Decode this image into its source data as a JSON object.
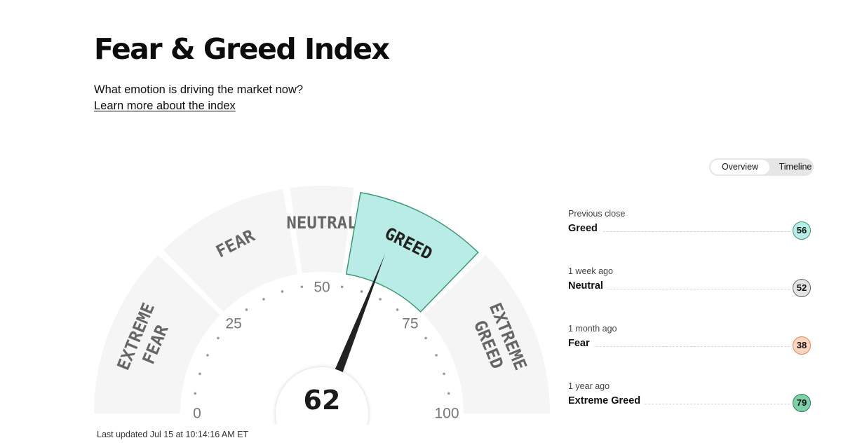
{
  "header": {
    "title": "Fear & Greed Index",
    "subtitle": "What emotion is driving the market now?",
    "learn_link": "Learn more about the index"
  },
  "view_toggle": {
    "options": [
      "Overview",
      "Timeline"
    ],
    "selected": "Overview"
  },
  "gauge": {
    "value": 62,
    "current_rating": "GREED",
    "scale_min": 0,
    "scale_max": 100,
    "tick_labels": [
      "0",
      "25",
      "50",
      "75",
      "100"
    ],
    "segments": [
      {
        "label_lines": [
          "EXTREME",
          "FEAR"
        ],
        "from": 0,
        "to": 25
      },
      {
        "label_lines": [
          "FEAR"
        ],
        "from": 25,
        "to": 45
      },
      {
        "label_lines": [
          "NEUTRAL"
        ],
        "from": 45,
        "to": 55
      },
      {
        "label_lines": [
          "GREED"
        ],
        "from": 55,
        "to": 75
      },
      {
        "label_lines": [
          "EXTREME",
          "GREED"
        ],
        "from": 75,
        "to": 100
      }
    ],
    "colors": {
      "segment": "#f5f5f5",
      "active_fill": "#b9ece6",
      "active_stroke": "#3c9a73",
      "label": "#666666",
      "active_label": "#222222",
      "needle": "#222222",
      "dots": "#9a9a9a"
    }
  },
  "last_updated": "Last updated Jul 15 at 10:14:16 AM ET",
  "history": [
    {
      "label": "Previous close",
      "rating": "Greed",
      "value": "56",
      "badge_color": "#b9ece6",
      "border_color": "#3c9a73"
    },
    {
      "label": "1 week ago",
      "rating": "Neutral",
      "value": "52",
      "badge_color": "#e3e3e3",
      "border_color": "#666666"
    },
    {
      "label": "1 month ago",
      "rating": "Fear",
      "value": "38",
      "badge_color": "#fbd6c3",
      "border_color": "#e8834a"
    },
    {
      "label": "1 year ago",
      "rating": "Extreme Greed",
      "value": "79",
      "badge_color": "#7dd0a7",
      "border_color": "#2e7d5b"
    }
  ]
}
